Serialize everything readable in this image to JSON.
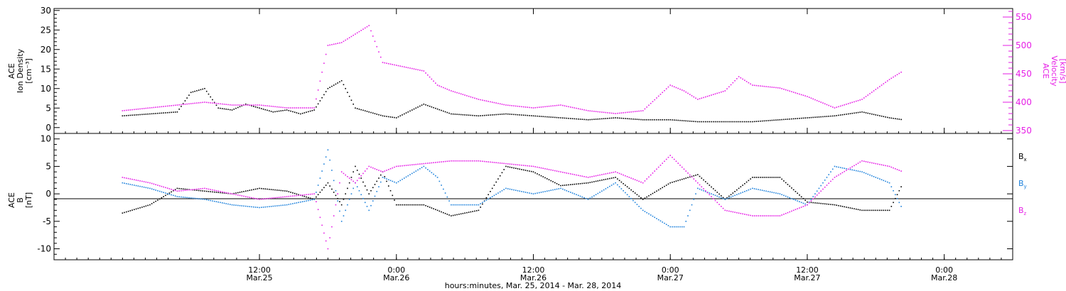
{
  "chart_data": [
    {
      "type": "scatter",
      "panel": "top",
      "ylabel_left": [
        "ACE",
        "Ion Density",
        "[cm⁻³]"
      ],
      "ylabel_right": [
        "ACE",
        "Velocity",
        "[km/s]"
      ],
      "ylim_left": [
        -1.5,
        30.5
      ],
      "ylim_right": [
        345,
        565
      ],
      "yticks_left": [
        0,
        5,
        10,
        15,
        20,
        25,
        30
      ],
      "yticks_right": [
        350,
        400,
        450,
        500,
        550
      ],
      "colors": {
        "density": "#000000",
        "velocity": "#e61ee6"
      },
      "series": [
        {
          "axis": "left",
          "x": [
            0,
            0.1,
            0.2,
            0.25,
            0.3,
            0.35,
            0.4,
            0.45,
            0.5,
            0.55,
            0.6,
            0.65,
            0.7,
            0.75,
            0.8,
            0.85,
            0.9,
            0.95,
            1.0,
            1.1,
            1.2,
            1.3,
            1.4,
            1.5,
            1.6,
            1.7,
            1.8,
            1.9,
            2.0,
            2.1,
            2.2,
            2.3,
            2.4,
            2.5,
            2.6,
            2.7,
            2.8,
            2.85
          ],
          "values": [
            3.0,
            3.5,
            4.0,
            9.0,
            10.0,
            5.0,
            4.5,
            6.0,
            5.0,
            4.0,
            4.5,
            3.5,
            4.5,
            10.0,
            12.0,
            5.0,
            4.0,
            3.0,
            2.5,
            6.0,
            3.5,
            3.0,
            3.5,
            3.0,
            2.5,
            2.0,
            2.5,
            2.0,
            2.0,
            1.5,
            1.5,
            1.5,
            2.0,
            2.5,
            3.0,
            4.0,
            2.5,
            2.0
          ]
        },
        {
          "axis": "right",
          "x": [
            0,
            0.1,
            0.2,
            0.3,
            0.4,
            0.5,
            0.6,
            0.7,
            0.75,
            0.8,
            0.85,
            0.9,
            0.95,
            1.0,
            1.1,
            1.15,
            1.2,
            1.3,
            1.4,
            1.5,
            1.6,
            1.7,
            1.8,
            1.9,
            2.0,
            2.05,
            2.1,
            2.2,
            2.25,
            2.3,
            2.4,
            2.5,
            2.6,
            2.7,
            2.8,
            2.85
          ],
          "values": [
            385,
            390,
            395,
            400,
            395,
            395,
            390,
            390,
            500,
            505,
            520,
            535,
            470,
            465,
            455,
            430,
            420,
            405,
            395,
            390,
            395,
            385,
            380,
            385,
            430,
            420,
            405,
            420,
            445,
            430,
            425,
            410,
            390,
            405,
            440,
            455
          ]
        }
      ]
    },
    {
      "type": "scatter",
      "panel": "bottom",
      "ylabel_left": [
        "ACE",
        "B",
        "[nT]"
      ],
      "ylim": [
        -12,
        11
      ],
      "yticks": [
        -10,
        -5,
        0,
        5,
        10
      ],
      "legend": [
        {
          "label": "B",
          "sub": "x",
          "color": "#000000"
        },
        {
          "label": "B",
          "sub": "y",
          "color": "#1e82dc"
        },
        {
          "label": "B",
          "sub": "z",
          "color": "#e61ee6"
        }
      ],
      "series": [
        {
          "axis": "left",
          "x": [
            0,
            0.1,
            0.2,
            0.3,
            0.4,
            0.5,
            0.6,
            0.7,
            0.75,
            0.8,
            0.85,
            0.9,
            0.95,
            1.0,
            1.1,
            1.15,
            1.2,
            1.3,
            1.4,
            1.5,
            1.6,
            1.7,
            1.8,
            1.9,
            2.0,
            2.1,
            2.2,
            2.3,
            2.4,
            2.5,
            2.6,
            2.7,
            2.8,
            2.85
          ],
          "values": [
            -3.5,
            -2.0,
            1.0,
            0.5,
            0.0,
            1.0,
            0.5,
            -1.0,
            2.0,
            -2.0,
            5.0,
            0.0,
            4.0,
            -2.0,
            -2.0,
            -3.0,
            -4.0,
            -3.0,
            5.0,
            4.0,
            1.5,
            2.0,
            3.0,
            -1.0,
            2.0,
            3.5,
            -1.0,
            3.0,
            3.0,
            -1.5,
            -2.0,
            -3.0,
            -3.0,
            2.0
          ]
        },
        {
          "axis": "left",
          "x": [
            0,
            0.1,
            0.2,
            0.3,
            0.4,
            0.5,
            0.6,
            0.7,
            0.75,
            0.8,
            0.85,
            0.9,
            0.95,
            1.0,
            1.1,
            1.15,
            1.2,
            1.3,
            1.4,
            1.5,
            1.6,
            1.7,
            1.8,
            1.9,
            2.0,
            2.05,
            2.1,
            2.2,
            2.3,
            2.4,
            2.5,
            2.6,
            2.7,
            2.8,
            2.85
          ],
          "values": [
            2.0,
            1.0,
            -0.5,
            -1.0,
            -2.0,
            -2.5,
            -2.0,
            -1.0,
            8.0,
            -5.0,
            2.0,
            -3.0,
            3.0,
            2.0,
            5.0,
            3.0,
            -2.0,
            -2.0,
            1.0,
            0.0,
            1.0,
            -1.0,
            2.0,
            -3.0,
            -6.0,
            -6.0,
            1.0,
            -1.0,
            1.0,
            0.0,
            -2.0,
            5.0,
            4.0,
            2.0,
            -3.0
          ]
        },
        {
          "axis": "left",
          "x": [
            0,
            0.1,
            0.2,
            0.3,
            0.4,
            0.5,
            0.6,
            0.7,
            0.75,
            0.8,
            0.85,
            0.9,
            0.95,
            1.0,
            1.1,
            1.2,
            1.3,
            1.4,
            1.5,
            1.6,
            1.7,
            1.8,
            1.9,
            2.0,
            2.1,
            2.2,
            2.3,
            2.4,
            2.5,
            2.6,
            2.7,
            2.8,
            2.85
          ],
          "values": [
            3.0,
            2.0,
            0.5,
            1.0,
            0.0,
            -1.0,
            -0.5,
            0.0,
            -10.0,
            4.0,
            2.0,
            5.0,
            4.0,
            5.0,
            5.5,
            6.0,
            6.0,
            5.5,
            5.0,
            4.0,
            3.0,
            4.0,
            2.0,
            7.0,
            2.0,
            -3.0,
            -4.0,
            -4.0,
            -2.0,
            3.0,
            6.0,
            5.0,
            4.0
          ]
        }
      ]
    }
  ],
  "x_axis": {
    "range_days": [
      -0.25,
      3.25
    ],
    "tick_days": [
      0.5,
      1.0,
      1.5,
      2.0,
      2.5,
      3.0
    ],
    "ticks": [
      {
        "time": "12:00",
        "date": "Mar.25"
      },
      {
        "time": "0:00",
        "date": "Mar.26"
      },
      {
        "time": "12:00",
        "date": "Mar.26"
      },
      {
        "time": "0:00",
        "date": "Mar.27"
      },
      {
        "time": "12:00",
        "date": "Mar.27"
      },
      {
        "time": "0:00",
        "date": "Mar.28"
      }
    ],
    "title": "hours:minutes, Mar. 25, 2014 - Mar. 28, 2014"
  }
}
